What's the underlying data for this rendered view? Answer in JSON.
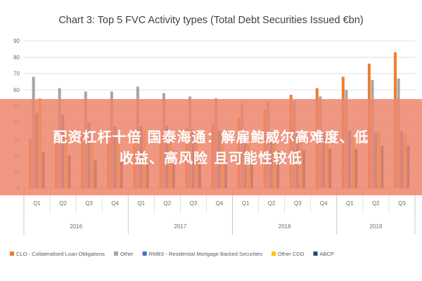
{
  "chart_data": {
    "type": "bar",
    "title": "Chart 3: Top 5 FVC Activity types (Total Debt Securities Issued €bn)",
    "quarters": [
      "Q1",
      "Q2",
      "Q3",
      "Q4",
      "Q1",
      "Q2",
      "Q3",
      "Q4",
      "Q1",
      "Q2",
      "Q3",
      "Q4",
      "Q1",
      "Q2",
      "Q3"
    ],
    "years": [
      {
        "label": "2016",
        "span": 4
      },
      {
        "label": "2017",
        "span": 4
      },
      {
        "label": "2018",
        "span": 4
      },
      {
        "label": "2019",
        "span": 3
      }
    ],
    "ylim": [
      0,
      90
    ],
    "yticks": [
      0,
      10,
      20,
      30,
      40,
      50,
      60,
      70,
      80,
      90
    ],
    "grid": true,
    "legend_position": "bottom",
    "series": [
      {
        "name": "CLO - Collateralised Loan Obligations",
        "color": "#ED7D31",
        "values": [
          30,
          32,
          33,
          33,
          34,
          36,
          37,
          39,
          43,
          48,
          57,
          61,
          68,
          76,
          83
        ]
      },
      {
        "name": "Other",
        "color": "#A5A5A5",
        "values": [
          68,
          61,
          59,
          59,
          62,
          58,
          56,
          55,
          52,
          53,
          53,
          56,
          60,
          66,
          67
        ]
      },
      {
        "name": "RMBS - Residential Mortgage Backed Securities",
        "color": "#4472C4",
        "values": [
          46,
          45,
          40,
          38,
          38,
          38,
          36,
          35,
          35,
          35,
          34,
          34,
          35,
          34,
          35
        ]
      },
      {
        "name": "Other CDO",
        "color": "#FFC000",
        "values": [
          55,
          35,
          30,
          30,
          35,
          34,
          34,
          32,
          33,
          32,
          32,
          33,
          31,
          34,
          33
        ]
      },
      {
        "name": "ABCP",
        "color": "#264478",
        "values": [
          22,
          20,
          17,
          17,
          16,
          16,
          17,
          17,
          22,
          23,
          23,
          24,
          24,
          26,
          26
        ]
      }
    ]
  },
  "overlay": {
    "line1": "配资杠杆十倍 国泰海通：解雇鲍威尔高难度、低",
    "line2": "收益、高风险 且可能性较低",
    "color": "#EC866C"
  }
}
